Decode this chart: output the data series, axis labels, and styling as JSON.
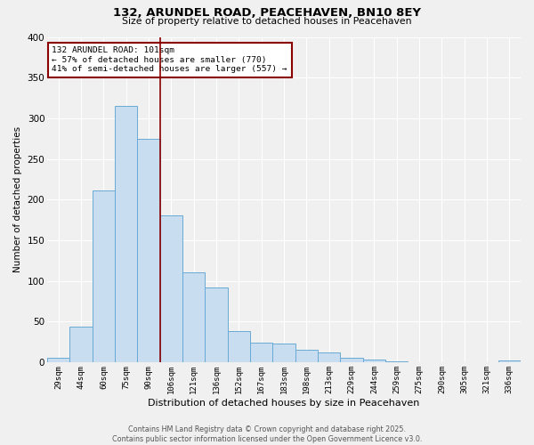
{
  "title": "132, ARUNDEL ROAD, PEACEHAVEN, BN10 8EY",
  "subtitle": "Size of property relative to detached houses in Peacehaven",
  "xlabel": "Distribution of detached houses by size in Peacehaven",
  "ylabel": "Number of detached properties",
  "categories": [
    "29sqm",
    "44sqm",
    "60sqm",
    "75sqm",
    "90sqm",
    "106sqm",
    "121sqm",
    "136sqm",
    "152sqm",
    "167sqm",
    "183sqm",
    "198sqm",
    "213sqm",
    "229sqm",
    "244sqm",
    "259sqm",
    "275sqm",
    "290sqm",
    "305sqm",
    "321sqm",
    "336sqm"
  ],
  "values": [
    5,
    44,
    211,
    315,
    275,
    180,
    110,
    92,
    38,
    24,
    23,
    15,
    12,
    5,
    3,
    1,
    0,
    0,
    0,
    0,
    2
  ],
  "bar_color": "#c9ddf0",
  "bar_edge_color": "#6aaad4",
  "vline_x": 4.5,
  "vline_color": "#8b0000",
  "box_edge_color": "#8b0000",
  "property_label": "132 ARUNDEL ROAD: 101sqm",
  "line1": "← 57% of detached houses are smaller (770)",
  "line2": "41% of semi-detached houses are larger (557) →",
  "ylim": [
    0,
    400
  ],
  "yticks": [
    0,
    50,
    100,
    150,
    200,
    250,
    300,
    350,
    400
  ],
  "footer1": "Contains HM Land Registry data © Crown copyright and database right 2025.",
  "footer2": "Contains public sector information licensed under the Open Government Licence v3.0.",
  "bg_color": "#f0f0f0",
  "grid_color": "#ffffff"
}
